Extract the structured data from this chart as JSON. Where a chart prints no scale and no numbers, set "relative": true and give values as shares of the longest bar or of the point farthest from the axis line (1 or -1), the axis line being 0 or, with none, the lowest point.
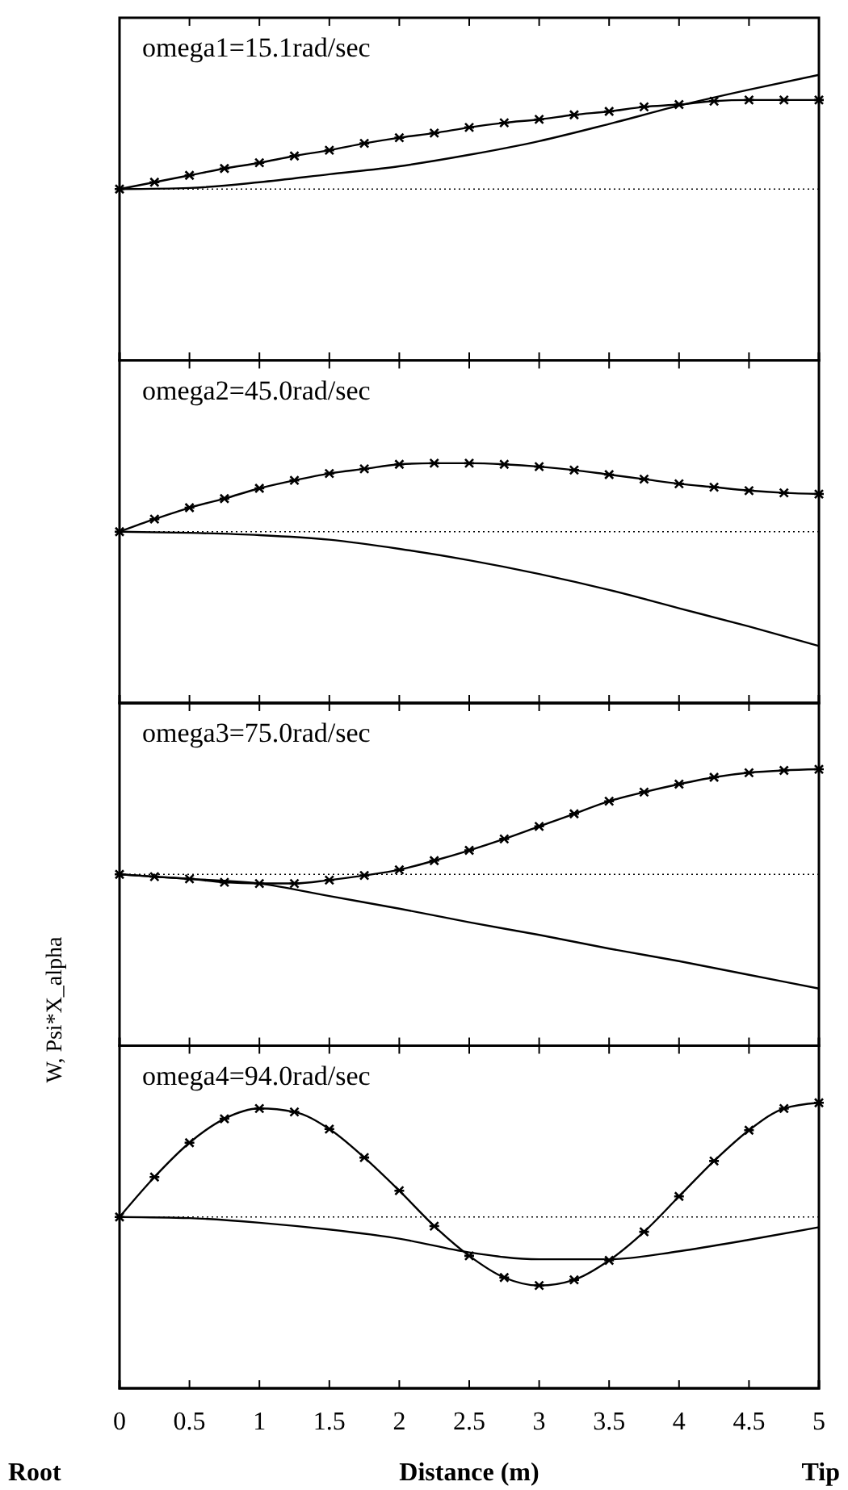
{
  "chart_data": [
    {
      "type": "line",
      "title": "omega1=15.1rad/sec",
      "relative": true,
      "xlim": [
        0,
        5
      ],
      "xticks": [
        0,
        0.5,
        1,
        1.5,
        2,
        2.5,
        3,
        3.5,
        4,
        4.5,
        5
      ],
      "tick_labels": false,
      "ref_lines": [
        {
          "axis": "y",
          "value": 0,
          "line_style": "dotted",
          "color": "#000000"
        }
      ],
      "series": [
        {
          "color": "#000000",
          "marker": "cross",
          "line_style": "solid",
          "x": [
            0,
            0.25,
            0.5,
            0.75,
            1,
            1.25,
            1.5,
            1.75,
            2,
            2.25,
            2.5,
            2.75,
            3,
            3.25,
            3.5,
            3.75,
            4,
            4.25,
            4.5,
            4.75,
            5
          ],
          "values": [
            0,
            0.06,
            0.12,
            0.18,
            0.23,
            0.29,
            0.34,
            0.4,
            0.45,
            0.49,
            0.54,
            0.58,
            0.61,
            0.65,
            0.68,
            0.72,
            0.74,
            0.77,
            0.78,
            0.78,
            0.78
          ]
        },
        {
          "color": "#000000",
          "marker": "none",
          "line_style": "solid",
          "x": [
            0,
            0.5,
            1,
            1.5,
            2,
            2.5,
            3,
            3.5,
            4,
            4.5,
            5
          ],
          "values": [
            0,
            0.01,
            0.06,
            0.13,
            0.2,
            0.3,
            0.42,
            0.57,
            0.73,
            0.87,
            1
          ]
        }
      ]
    },
    {
      "type": "line",
      "title": "omega2=45.0rad/sec",
      "relative": true,
      "xlim": [
        0,
        5
      ],
      "xticks": [
        0,
        0.5,
        1,
        1.5,
        2,
        2.5,
        3,
        3.5,
        4,
        4.5,
        5
      ],
      "tick_labels": false,
      "ref_lines": [
        {
          "axis": "y",
          "value": 0,
          "line_style": "dotted",
          "color": "#000000"
        }
      ],
      "series": [
        {
          "color": "#000000",
          "marker": "cross",
          "line_style": "solid",
          "x": [
            0,
            0.25,
            0.5,
            0.75,
            1,
            1.25,
            1.5,
            1.75,
            2,
            2.25,
            2.5,
            2.75,
            3,
            3.25,
            3.5,
            3.75,
            4,
            4.25,
            4.5,
            4.75,
            5
          ],
          "values": [
            0,
            0.11,
            0.21,
            0.29,
            0.38,
            0.45,
            0.51,
            0.55,
            0.59,
            0.6,
            0.6,
            0.59,
            0.57,
            0.54,
            0.5,
            0.46,
            0.42,
            0.39,
            0.36,
            0.34,
            0.33
          ]
        },
        {
          "color": "#000000",
          "marker": "none",
          "line_style": "solid",
          "x": [
            0,
            0.5,
            1,
            1.5,
            2,
            2.5,
            3,
            3.5,
            4,
            4.5,
            5
          ],
          "values": [
            0,
            -0.01,
            -0.03,
            -0.07,
            -0.15,
            -0.25,
            -0.37,
            -0.51,
            -0.67,
            -0.83,
            -1
          ]
        }
      ]
    },
    {
      "type": "line",
      "title": "omega3=75.0rad/sec",
      "relative": true,
      "xlim": [
        0,
        5
      ],
      "xticks": [
        0,
        0.5,
        1,
        1.5,
        2,
        2.5,
        3,
        3.5,
        4,
        4.5,
        5
      ],
      "tick_labels": false,
      "ref_lines": [
        {
          "axis": "y",
          "value": 0,
          "line_style": "dotted",
          "color": "#000000"
        }
      ],
      "series": [
        {
          "color": "#000000",
          "marker": "cross",
          "line_style": "solid",
          "x": [
            0,
            0.25,
            0.5,
            0.75,
            1,
            1.25,
            1.5,
            1.75,
            2,
            2.25,
            2.5,
            2.75,
            3,
            3.25,
            3.5,
            3.75,
            4,
            4.25,
            4.5,
            4.75,
            5
          ],
          "values": [
            0,
            -0.02,
            -0.04,
            -0.07,
            -0.08,
            -0.08,
            -0.05,
            -0.01,
            0.04,
            0.12,
            0.21,
            0.31,
            0.42,
            0.53,
            0.64,
            0.72,
            0.79,
            0.85,
            0.89,
            0.91,
            0.92
          ]
        },
        {
          "color": "#000000",
          "marker": "none",
          "line_style": "solid",
          "x": [
            0,
            0.5,
            1,
            1.5,
            2,
            2.5,
            3,
            3.5,
            4,
            4.5,
            5
          ],
          "values": [
            0,
            -0.04,
            -0.08,
            -0.19,
            -0.3,
            -0.42,
            -0.53,
            -0.65,
            -0.76,
            -0.88,
            -1
          ]
        }
      ]
    },
    {
      "type": "line",
      "title": "omega4=94.0rad/sec",
      "relative": true,
      "xlabel": "Distance (m)",
      "ylabel": "W,  Psi*X_alpha",
      "annotations": [
        "Root",
        "Tip"
      ],
      "xlim": [
        0,
        5
      ],
      "xticks": [
        0,
        0.5,
        1,
        1.5,
        2,
        2.5,
        3,
        3.5,
        4,
        4.5,
        5
      ],
      "tick_labels": "x",
      "ref_lines": [
        {
          "axis": "y",
          "value": 0,
          "line_style": "dotted",
          "color": "#000000"
        }
      ],
      "series": [
        {
          "color": "#000000",
          "marker": "cross",
          "line_style": "solid",
          "x": [
            0,
            0.25,
            0.5,
            0.75,
            1,
            1.25,
            1.5,
            1.75,
            2,
            2.25,
            2.5,
            2.75,
            3,
            3.25,
            3.5,
            3.75,
            4,
            4.25,
            4.5,
            4.75,
            5
          ],
          "values": [
            0,
            0.35,
            0.65,
            0.86,
            0.95,
            0.92,
            0.77,
            0.52,
            0.23,
            -0.08,
            -0.34,
            -0.53,
            -0.6,
            -0.55,
            -0.38,
            -0.13,
            0.18,
            0.49,
            0.76,
            0.95,
            1
          ]
        },
        {
          "color": "#000000",
          "marker": "none",
          "line_style": "solid",
          "x": [
            0,
            0.5,
            1,
            1.5,
            2,
            2.5,
            3,
            3.5,
            4,
            4.5,
            5
          ],
          "values": [
            0,
            -0.01,
            -0.05,
            -0.11,
            -0.19,
            -0.31,
            -0.37,
            -0.37,
            -0.3,
            -0.2,
            -0.09
          ]
        }
      ]
    }
  ]
}
